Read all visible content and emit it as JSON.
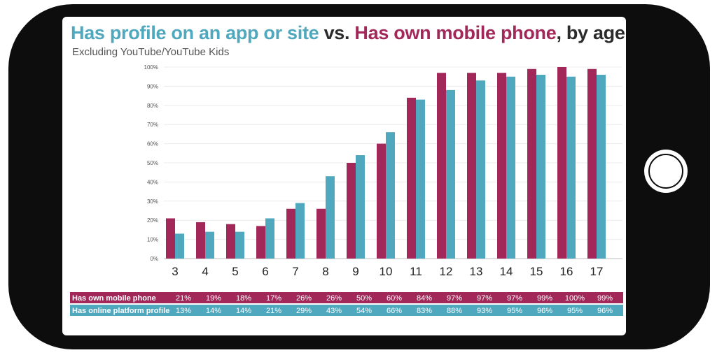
{
  "colors": {
    "phone": "#a3285a",
    "profile": "#4fa8bd"
  },
  "chart_data": {
    "type": "bar",
    "title": {
      "part1": "Has profile on an app or site",
      "part2": " vs. ",
      "part3": "Has own mobile phone",
      "part4": ", by age"
    },
    "subtitle": "Excluding YouTube/YouTube Kids",
    "xlabel": "",
    "ylabel": "",
    "ylim": [
      0,
      100
    ],
    "yticks": [
      "0%",
      "10%",
      "20%",
      "30%",
      "40%",
      "50%",
      "60%",
      "70%",
      "80%",
      "90%",
      "100%"
    ],
    "categories": [
      "3",
      "4",
      "5",
      "6",
      "7",
      "8",
      "9",
      "10",
      "11",
      "12",
      "13",
      "14",
      "15",
      "16",
      "17"
    ],
    "series": [
      {
        "name": "Has own mobile phone",
        "values": [
          21,
          19,
          18,
          17,
          26,
          26,
          50,
          60,
          84,
          97,
          97,
          97,
          99,
          100,
          99
        ]
      },
      {
        "name": "Has online platform profile",
        "values": [
          13,
          14,
          14,
          21,
          29,
          43,
          54,
          66,
          83,
          88,
          93,
          95,
          96,
          95,
          96
        ]
      }
    ],
    "table_rows": [
      {
        "label": "Has own mobile phone",
        "values": [
          "21%",
          "19%",
          "18%",
          "17%",
          "26%",
          "26%",
          "50%",
          "60%",
          "84%",
          "97%",
          "97%",
          "97%",
          "99%",
          "100%",
          "99%"
        ]
      },
      {
        "label": "Has online platform profile",
        "values": [
          "13%",
          "14%",
          "14%",
          "21%",
          "29%",
          "43%",
          "54%",
          "66%",
          "83%",
          "88%",
          "93%",
          "95%",
          "96%",
          "95%",
          "96%"
        ]
      }
    ]
  }
}
